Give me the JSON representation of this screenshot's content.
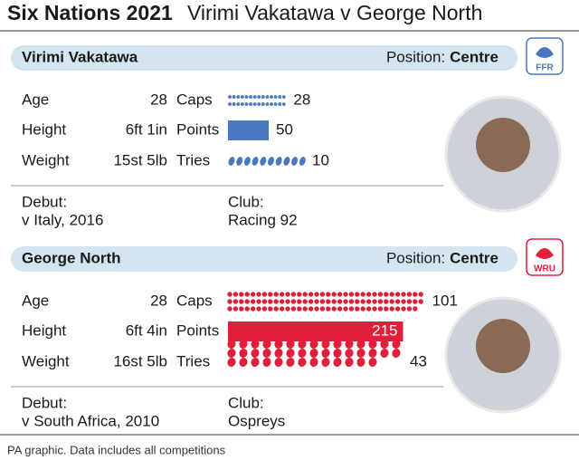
{
  "title": {
    "main": "Six Nations 2021",
    "rest": "Virimi Vakatawa v George North"
  },
  "players": [
    {
      "name": "Virimi Vakatawa",
      "position_label": "Position:",
      "position": "Centre",
      "logo": "FFR",
      "color": "#4a78c0",
      "info": [
        {
          "label": "Age",
          "value": "28"
        },
        {
          "label": "Height",
          "value": "6ft 1in"
        },
        {
          "label": "Weight",
          "value": "15st 5lb"
        }
      ],
      "caps": {
        "label": "Caps",
        "value": 28
      },
      "points": {
        "label": "Points",
        "value": 50
      },
      "tries": {
        "label": "Tries",
        "value": 10
      },
      "debut": {
        "label": "Debut:",
        "value": "v Italy, 2016"
      },
      "club": {
        "label": "Club:",
        "value": "Racing 92"
      }
    },
    {
      "name": "George North",
      "position_label": "Position:",
      "position": "Centre",
      "logo": "WRU",
      "color": "#e0203a",
      "info": [
        {
          "label": "Age",
          "value": "28"
        },
        {
          "label": "Height",
          "value": "6ft 4in"
        },
        {
          "label": "Weight",
          "value": "16st 5lb"
        }
      ],
      "caps": {
        "label": "Caps",
        "value": 101
      },
      "points": {
        "label": "Points",
        "value": 215
      },
      "tries": {
        "label": "Tries",
        "value": 43
      },
      "debut": {
        "label": "Debut:",
        "value": "v South Africa, 2010"
      },
      "club": {
        "label": "Club:",
        "value": "Ospreys"
      }
    }
  ],
  "footer": "PA graphic. Data includes all competitions"
}
